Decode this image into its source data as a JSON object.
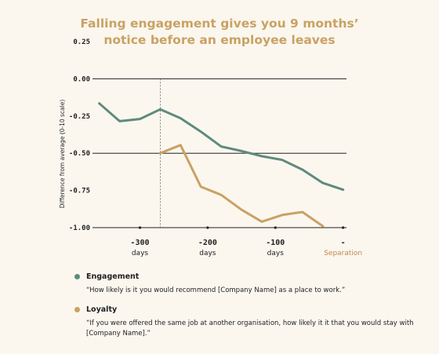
{
  "colors": {
    "background": "#fbf7ef",
    "title": "#c9a263",
    "engagement": "#5e8b7e",
    "loyalty": "#c9a263",
    "separation_label": "#c38a4a",
    "axis": "#222222"
  },
  "chart_data": {
    "type": "line",
    "title_lines": [
      "Falling engagement gives you 9 months’",
      "notice before an employee leaves"
    ],
    "ylabel": "Difference from average (0-10 scale)",
    "ylim": [
      -1.0,
      0.25
    ],
    "yticks": [
      {
        "value": 0.25,
        "label": "0.25"
      },
      {
        "value": 0.0,
        "label": "0.00"
      },
      {
        "value": -0.25,
        "label": "-0.25"
      },
      {
        "value": -0.5,
        "label": "-0.50"
      },
      {
        "value": -0.75,
        "label": "-0.75"
      },
      {
        "value": -1.0,
        "label": "-1.00"
      }
    ],
    "ygrid": [
      0.0,
      -0.5,
      -1.0
    ],
    "xlim": [
      -370,
      5
    ],
    "xticks": [
      {
        "value": -300,
        "label": "-300",
        "sub": "days",
        "highlight": false
      },
      {
        "value": -200,
        "label": "-200",
        "sub": "days",
        "highlight": false
      },
      {
        "value": -100,
        "label": "-100",
        "sub": "days",
        "highlight": false
      },
      {
        "value": 0,
        "label": "-",
        "sub": "Separation",
        "highlight": true
      }
    ],
    "marker_line_x": -270,
    "series": [
      {
        "name": "Engagement",
        "color": "#5e8b7e",
        "x": [
          -360,
          -330,
          -300,
          -270,
          -240,
          -210,
          -180,
          -150,
          -120,
          -90,
          -60,
          -30,
          0
        ],
        "y": [
          -0.165,
          -0.285,
          -0.27,
          -0.205,
          -0.265,
          -0.355,
          -0.455,
          -0.485,
          -0.52,
          -0.545,
          -0.61,
          -0.7,
          -0.745
        ]
      },
      {
        "name": "Loyalty",
        "color": "#c9a263",
        "x": [
          -270,
          -240,
          -210,
          -180,
          -150,
          -120,
          -90,
          -60,
          -30
        ],
        "y": [
          -0.5,
          -0.445,
          -0.725,
          -0.78,
          -0.88,
          -0.96,
          -0.915,
          -0.895,
          -0.99
        ]
      }
    ]
  },
  "legend": [
    {
      "name": "Engagement",
      "color": "#5e8b7e",
      "quote": "“How likely is it you would recommend [Company Name] as a place to work.”"
    },
    {
      "name": "Loyalty",
      "color": "#c9a263",
      "quote": "“If you were offered the same job at another organisation, how likely it it that you would stay with [Company Name].”"
    }
  ]
}
